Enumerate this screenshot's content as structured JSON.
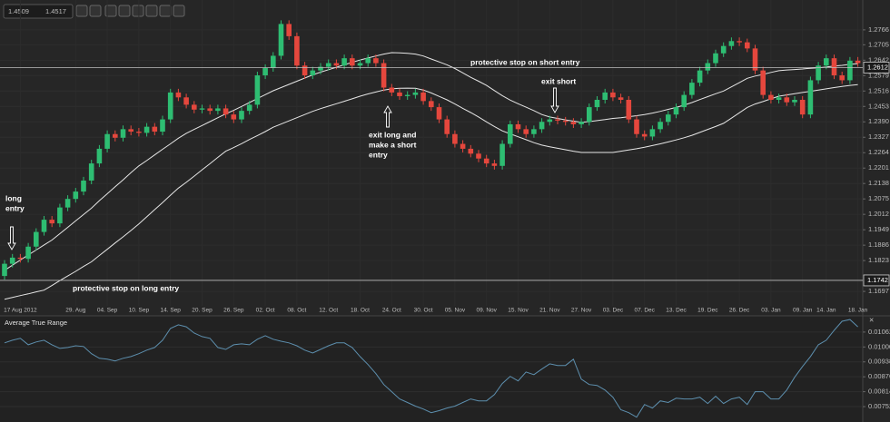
{
  "toolbar": {
    "bid": "1.4509",
    "ask": "1.4517"
  },
  "chart_data": [
    {
      "type": "candlestick",
      "categories": [
        null,
        null,
        "17 Aug 2012",
        null,
        null,
        null,
        null,
        null,
        null,
        "29. Aug",
        null,
        null,
        null,
        "04. Sep",
        null,
        null,
        null,
        "10. Sep",
        null,
        null,
        null,
        "14. Sep",
        null,
        null,
        null,
        "20. Sep",
        null,
        null,
        null,
        "26. Sep",
        null,
        null,
        null,
        "02. Oct",
        null,
        null,
        null,
        "08. Oct",
        null,
        null,
        null,
        "12. Oct",
        null,
        null,
        null,
        "18. Oct",
        null,
        null,
        null,
        "24. Oct",
        null,
        null,
        null,
        "30. Oct",
        null,
        null,
        null,
        "05. Nov",
        null,
        null,
        null,
        "09. Nov",
        null,
        null,
        null,
        "15. Nov",
        null,
        null,
        null,
        "21. Nov",
        null,
        null,
        null,
        "27. Nov",
        null,
        null,
        null,
        "03. Dec",
        null,
        null,
        null,
        "07. Dec",
        null,
        null,
        null,
        "13. Dec",
        null,
        null,
        null,
        "19. Dec",
        null,
        null,
        null,
        "26. Dec",
        null,
        null,
        null,
        "03. Jan",
        null,
        null,
        null,
        "09. Jan",
        null,
        null,
        "14. Jan",
        null,
        null,
        null,
        "18. Jan"
      ],
      "open": [
        1.176,
        1.181,
        1.1835,
        1.183,
        1.188,
        1.194,
        1.199,
        1.1975,
        1.204,
        1.2075,
        1.2105,
        1.215,
        1.222,
        1.228,
        1.234,
        1.2325,
        1.236,
        1.235,
        1.2345,
        1.237,
        1.235,
        1.24,
        1.251,
        1.249,
        1.246,
        1.244,
        1.2445,
        1.2435,
        1.2445,
        1.242,
        1.24,
        1.2435,
        1.246,
        1.258,
        1.261,
        1.266,
        1.279,
        1.274,
        1.262,
        1.258,
        1.26,
        1.2615,
        1.263,
        1.262,
        1.265,
        1.262,
        1.263,
        1.265,
        1.263,
        1.253,
        1.251,
        1.2495,
        1.25,
        1.251,
        1.2475,
        1.245,
        1.24,
        1.234,
        1.23,
        1.228,
        1.226,
        1.224,
        1.222,
        1.221,
        1.23,
        1.238,
        1.236,
        1.234,
        1.236,
        1.239,
        1.24,
        1.2395,
        1.239,
        1.238,
        1.239,
        1.245,
        1.248,
        1.251,
        1.249,
        1.248,
        1.24,
        1.234,
        1.233,
        1.236,
        1.239,
        1.242,
        1.245,
        1.25,
        1.255,
        1.26,
        1.263,
        1.267,
        1.27,
        1.272,
        1.2715,
        1.269,
        1.26,
        1.25,
        1.248,
        1.249,
        1.247,
        1.248,
        1.242,
        1.256,
        1.262,
        1.265,
        1.258,
        1.256,
        1.264
      ],
      "high": [
        1.1825,
        1.185,
        1.185,
        1.1895,
        1.1955,
        1.2005,
        1.2005,
        1.2055,
        1.209,
        1.212,
        1.2165,
        1.2235,
        1.2295,
        1.2355,
        1.2355,
        1.2375,
        1.2375,
        1.2365,
        1.2385,
        1.2385,
        1.2415,
        1.2525,
        1.2525,
        1.2505,
        1.2475,
        1.246,
        1.246,
        1.246,
        1.246,
        1.2435,
        1.245,
        1.2475,
        1.2595,
        1.2625,
        1.2675,
        1.2805,
        1.2805,
        1.2755,
        1.2635,
        1.2615,
        1.263,
        1.2645,
        1.2645,
        1.2665,
        1.2665,
        1.2645,
        1.2665,
        1.2665,
        1.2645,
        1.2545,
        1.2525,
        1.2515,
        1.2525,
        1.2525,
        1.249,
        1.2465,
        1.2415,
        1.2355,
        1.2315,
        1.2295,
        1.2275,
        1.2255,
        1.2235,
        1.2315,
        1.2395,
        1.2395,
        1.2375,
        1.2375,
        1.2405,
        1.2415,
        1.2415,
        1.241,
        1.2405,
        1.2405,
        1.2465,
        1.2495,
        1.2525,
        1.2525,
        1.2505,
        1.2495,
        1.2415,
        1.2355,
        1.2375,
        1.2405,
        1.2435,
        1.2465,
        1.2515,
        1.2565,
        1.2615,
        1.2645,
        1.2685,
        1.2715,
        1.2735,
        1.2735,
        1.273,
        1.2705,
        1.2615,
        1.2515,
        1.2505,
        1.2505,
        1.2495,
        1.2495,
        1.2575,
        1.2635,
        1.2665,
        1.2665,
        1.2595,
        1.2655,
        1.2655
      ],
      "low": [
        1.1745,
        1.1795,
        1.1815,
        1.1815,
        1.1865,
        1.1925,
        1.196,
        1.196,
        1.2025,
        1.206,
        1.209,
        1.2135,
        1.2205,
        1.2265,
        1.231,
        1.231,
        1.2335,
        1.233,
        1.233,
        1.2335,
        1.2335,
        1.2385,
        1.2475,
        1.2445,
        1.2425,
        1.2425,
        1.242,
        1.242,
        1.2405,
        1.2385,
        1.2385,
        1.242,
        1.2445,
        1.2565,
        1.2595,
        1.2645,
        1.2725,
        1.2605,
        1.2565,
        1.2565,
        1.2585,
        1.26,
        1.2605,
        1.2605,
        1.2605,
        1.2605,
        1.2615,
        1.2615,
        1.2515,
        1.2495,
        1.248,
        1.248,
        1.2485,
        1.246,
        1.2435,
        1.2385,
        1.2325,
        1.2285,
        1.2265,
        1.2245,
        1.2225,
        1.2205,
        1.2195,
        1.2195,
        1.2285,
        1.2345,
        1.2325,
        1.2325,
        1.2345,
        1.2375,
        1.238,
        1.2375,
        1.2365,
        1.2365,
        1.2375,
        1.2435,
        1.2465,
        1.2475,
        1.2465,
        1.2385,
        1.2325,
        1.2315,
        1.2315,
        1.2345,
        1.2375,
        1.2405,
        1.2435,
        1.2485,
        1.2535,
        1.2585,
        1.2615,
        1.2655,
        1.2685,
        1.27,
        1.2675,
        1.2585,
        1.2485,
        1.2465,
        1.2465,
        1.2455,
        1.2455,
        1.2405,
        1.2405,
        1.2545,
        1.2605,
        1.2565,
        1.2545,
        1.2545,
        1.2615
      ],
      "close": [
        1.181,
        1.1835,
        1.183,
        1.188,
        1.194,
        1.199,
        1.1975,
        1.204,
        1.2075,
        1.2105,
        1.215,
        1.222,
        1.228,
        1.234,
        1.2325,
        1.236,
        1.235,
        1.2345,
        1.237,
        1.235,
        1.24,
        1.251,
        1.249,
        1.246,
        1.244,
        1.2445,
        1.2435,
        1.2445,
        1.242,
        1.24,
        1.2435,
        1.246,
        1.258,
        1.261,
        1.266,
        1.279,
        1.274,
        1.262,
        1.258,
        1.26,
        1.2615,
        1.263,
        1.262,
        1.265,
        1.262,
        1.263,
        1.265,
        1.263,
        1.253,
        1.251,
        1.2495,
        1.25,
        1.251,
        1.2475,
        1.245,
        1.24,
        1.234,
        1.23,
        1.228,
        1.226,
        1.224,
        1.222,
        1.221,
        1.23,
        1.238,
        1.236,
        1.234,
        1.236,
        1.239,
        1.24,
        1.2395,
        1.239,
        1.238,
        1.239,
        1.245,
        1.248,
        1.251,
        1.249,
        1.248,
        1.24,
        1.234,
        1.233,
        1.236,
        1.239,
        1.242,
        1.245,
        1.25,
        1.255,
        1.26,
        1.263,
        1.267,
        1.27,
        1.272,
        1.2715,
        1.269,
        1.26,
        1.25,
        1.248,
        1.249,
        1.247,
        1.248,
        1.242,
        1.256,
        1.262,
        1.265,
        1.258,
        1.256,
        1.264,
        1.263
      ],
      "up_color": "#2ebd72",
      "down_color": "#e5473d",
      "series": [
        {
          "color": "#e6e6e6",
          "values": [
            1.1783,
            1.1804,
            1.1825,
            1.1846,
            1.1866,
            1.1887,
            1.1907,
            1.1933,
            1.1959,
            1.1985,
            1.2011,
            1.2037,
            1.2068,
            1.2096,
            1.2125,
            1.2153,
            1.2182,
            1.221,
            1.2232,
            1.2255,
            1.2278,
            1.23,
            1.2323,
            1.2343,
            1.2359,
            1.2375,
            1.2391,
            1.2407,
            1.2423,
            1.2437,
            1.2453,
            1.2469,
            1.2485,
            1.2501,
            1.2517,
            1.253,
            1.2543,
            1.2556,
            1.2569,
            1.2582,
            1.2593,
            1.2603,
            1.2613,
            1.2623,
            1.2633,
            1.2643,
            1.2651,
            1.2659,
            1.2667,
            1.2673,
            1.2672,
            1.267,
            1.2667,
            1.2659,
            1.2647,
            1.2635,
            1.2623,
            1.2608,
            1.259,
            1.2572,
            1.2556,
            1.2539,
            1.2518,
            1.2497,
            1.2479,
            1.2464,
            1.245,
            1.2436,
            1.242,
            1.241,
            1.2404,
            1.2398,
            1.2393,
            1.2388,
            1.2391,
            1.2395,
            1.2399,
            1.2404,
            1.2407,
            1.2411,
            1.2415,
            1.242,
            1.2426,
            1.2433,
            1.2441,
            1.2449,
            1.2458,
            1.2469,
            1.2481,
            1.2493,
            1.2505,
            1.2516,
            1.2533,
            1.255,
            1.2568,
            1.2577,
            1.2584,
            1.2592,
            1.2599,
            1.2602,
            1.2604,
            1.2606,
            1.2609,
            1.2611,
            1.2614,
            1.2618,
            1.2621,
            1.2625,
            1.2628
          ]
        },
        {
          "color": "#e6e6e6",
          "values": [
            1.1665,
            1.1672,
            1.168,
            1.1687,
            1.1695,
            1.1702,
            1.1721,
            1.1741,
            1.176,
            1.1779,
            1.1799,
            1.1818,
            1.1844,
            1.1869,
            1.1895,
            1.192,
            1.1946,
            1.1973,
            1.2002,
            1.2031,
            1.206,
            1.209,
            1.2119,
            1.2143,
            1.2168,
            1.2194,
            1.2219,
            1.2245,
            1.227,
            1.2285,
            1.2301,
            1.2318,
            1.2334,
            1.235,
            1.2368,
            1.2381,
            1.2394,
            1.2407,
            1.242,
            1.2433,
            1.2444,
            1.2454,
            1.2464,
            1.2474,
            1.2484,
            1.2495,
            1.2504,
            1.2512,
            1.252,
            1.2525,
            1.2527,
            1.2528,
            1.2527,
            1.252,
            1.2508,
            1.2494,
            1.248,
            1.2463,
            1.2445,
            1.2428,
            1.241,
            1.239,
            1.2371,
            1.2353,
            1.2341,
            1.2329,
            1.2317,
            1.2305,
            1.2295,
            1.2288,
            1.2282,
            1.2276,
            1.227,
            1.2265,
            1.2265,
            1.2265,
            1.2265,
            1.2265,
            1.227,
            1.2275,
            1.228,
            1.2286,
            1.2293,
            1.23,
            1.2308,
            1.2316,
            1.2325,
            1.2335,
            1.2347,
            1.2359,
            1.2371,
            1.2384,
            1.2405,
            1.2427,
            1.2449,
            1.2463,
            1.2473,
            1.2484,
            1.2495,
            1.25,
            1.2505,
            1.251,
            1.2515,
            1.252,
            1.2525,
            1.253,
            1.2535,
            1.2539,
            1.2542
          ]
        }
      ],
      "hlines": [
        1.2612,
        1.1742
      ],
      "annotations": [
        {
          "lines": [
            "long",
            "entry"
          ]
        },
        {
          "lines": [
            "protective stop on long entry"
          ]
        },
        {
          "lines": [
            "exit long and",
            "make a short",
            "entry"
          ]
        },
        {
          "lines": [
            "exit short"
          ]
        },
        {
          "lines": [
            "protective stop on short entry"
          ]
        }
      ],
      "ylim": [
        1.1638,
        1.2888
      ],
      "yticks": [
        1.2766,
        1.2705,
        1.2642,
        1.2579,
        1.2516,
        1.2453,
        {
          "value": 1.239,
          "label": "1.2390"
        },
        1.2327,
        1.2264,
        1.2201,
        1.2138,
        1.2075,
        1.2012,
        1.1949,
        1.1886,
        1.1823,
        1.1697
      ],
      "grid": true
    },
    {
      "type": "line",
      "title": "Average True Range",
      "color": "#5d8fae",
      "values": [
        0.01017,
        0.01028,
        0.01036,
        0.01009,
        0.01021,
        0.01028,
        0.01009,
        0.00994,
        0.00998,
        0.01005,
        0.01002,
        0.00972,
        0.00953,
        0.00949,
        0.00942,
        0.00953,
        0.0096,
        0.00972,
        0.00987,
        0.00998,
        0.01028,
        0.01077,
        0.01092,
        0.01084,
        0.01058,
        0.01043,
        0.01036,
        0.00998,
        0.0099,
        0.01009,
        0.01013,
        0.01009,
        0.01032,
        0.01047,
        0.01032,
        0.01024,
        0.01017,
        0.01005,
        0.00987,
        0.00975,
        0.0099,
        0.01005,
        0.01017,
        0.01017,
        0.00998,
        0.0096,
        0.00927,
        0.00889,
        0.00844,
        0.00814,
        0.00784,
        0.00769,
        0.00754,
        0.00742,
        0.00727,
        0.00735,
        0.00746,
        0.00754,
        0.00769,
        0.00784,
        0.00776,
        0.00776,
        0.00802,
        0.00848,
        0.00878,
        0.00859,
        0.00896,
        0.00885,
        0.00908,
        0.0093,
        0.00923,
        0.00923,
        0.00949,
        0.00866,
        0.00844,
        0.0084,
        0.00821,
        0.00791,
        0.00739,
        0.00727,
        0.00708,
        0.00761,
        0.00746,
        0.00776,
        0.00769,
        0.00787,
        0.00784,
        0.00784,
        0.00791,
        0.00765,
        0.00795,
        0.00765,
        0.00784,
        0.00791,
        0.00761,
        0.00814,
        0.00814,
        0.00784,
        0.00784,
        0.00821,
        0.00874,
        0.00919,
        0.0096,
        0.01009,
        0.01028,
        0.01069,
        0.01107,
        0.01114,
        0.01084
      ],
      "ylim": [
        0.00688,
        0.01122
      ],
      "yticks": [
        0.01062,
        {
          "value": 0.01,
          "label": "0.01000"
        },
        0.00938,
        0.00876,
        0.00814,
        0.00752
      ],
      "grid": true
    }
  ]
}
